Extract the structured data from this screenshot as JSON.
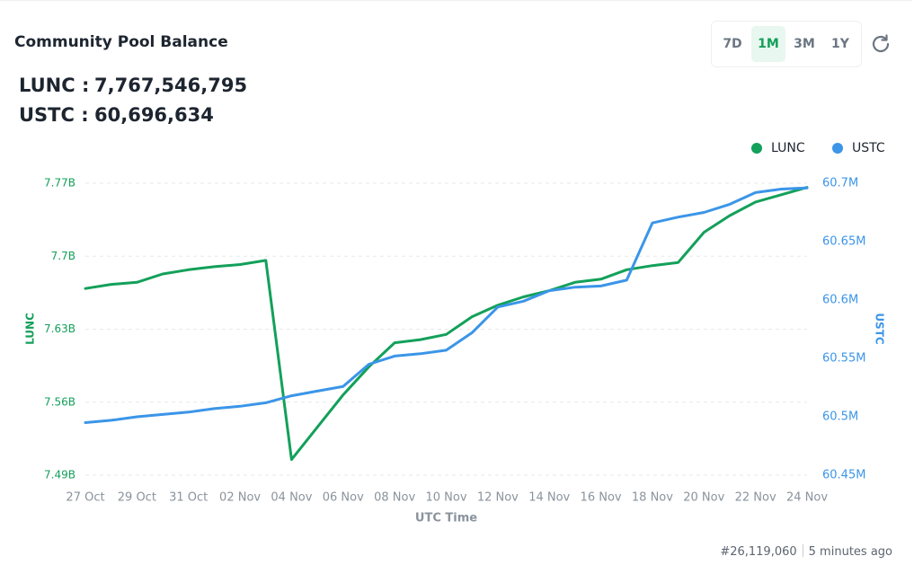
{
  "header": {
    "title": "Community Pool Balance"
  },
  "summary": [
    {
      "label": "LUNC :",
      "value": "7,767,546,795"
    },
    {
      "label": "USTC :",
      "value": "60,696,634"
    }
  ],
  "range_buttons": {
    "options": [
      "7D",
      "1M",
      "3M",
      "1Y"
    ],
    "active": "1M"
  },
  "footer": {
    "block": "#26,119,060",
    "time": "5 minutes ago"
  },
  "chart_data": {
    "type": "line",
    "categories": [
      "27 Oct",
      null,
      "29 Oct",
      null,
      "31 Oct",
      null,
      "02 Nov",
      null,
      "04 Nov",
      null,
      "06 Nov",
      null,
      "08 Nov",
      null,
      "10 Nov",
      null,
      "12 Nov",
      null,
      "14 Nov",
      null,
      "16 Nov",
      null,
      "18 Nov",
      null,
      "20 Nov",
      null,
      "22 Nov",
      null,
      "24 Nov"
    ],
    "xlabel": "UTC Time",
    "ylabel": "LUNC",
    "y2label": "USTC",
    "series": [
      {
        "name": "LUNC",
        "color": "#13a05a",
        "values": [
          7669000000,
          7673000000,
          7675000000,
          7683000000,
          7687000000,
          7690000000,
          7692000000,
          7696000000,
          7505000000,
          7536000000,
          7567000000,
          7594000000,
          7617000000,
          7620000000,
          7625000000,
          7642000000,
          7653000000,
          7661000000,
          7667000000,
          7675000000,
          7678000000,
          7687000000,
          7691000000,
          7694000000,
          7723000000,
          7739000000,
          7752000000,
          7759000000,
          7766000000
        ]
      },
      {
        "name": "USTC",
        "color": "#3b95e8",
        "axis": "y2",
        "values": [
          60495000,
          60497000,
          60500000,
          60502000,
          60504000,
          60507000,
          60509000,
          60512000,
          60518000,
          60522000,
          60526000,
          60545000,
          60552000,
          60554000,
          60557000,
          60572000,
          60594000,
          60599000,
          60608000,
          60611000,
          60612000,
          60617000,
          60666000,
          60671000,
          60675000,
          60682000,
          60692000,
          60695000,
          60696000
        ]
      }
    ],
    "ylim": [
      7490000000,
      7770000000
    ],
    "yticks": [
      {
        "value": 7490000000,
        "label": "7.49B"
      },
      {
        "value": 7560000000,
        "label": "7.56B"
      },
      {
        "value": 7630000000,
        "label": "7.63B"
      },
      {
        "value": 7700000000,
        "label": "7.7B"
      },
      {
        "value": 7770000000,
        "label": "7.77B"
      }
    ],
    "y2lim": [
      60450000,
      60700000
    ],
    "y2ticks": [
      {
        "value": 60450000,
        "label": "60.45M"
      },
      {
        "value": 60500000,
        "label": "60.5M"
      },
      {
        "value": 60550000,
        "label": "60.55M"
      },
      {
        "value": 60600000,
        "label": "60.6M"
      },
      {
        "value": 60650000,
        "label": "60.65M"
      },
      {
        "value": 60700000,
        "label": "60.7M"
      }
    ],
    "grid": true,
    "legend": "top-right"
  }
}
